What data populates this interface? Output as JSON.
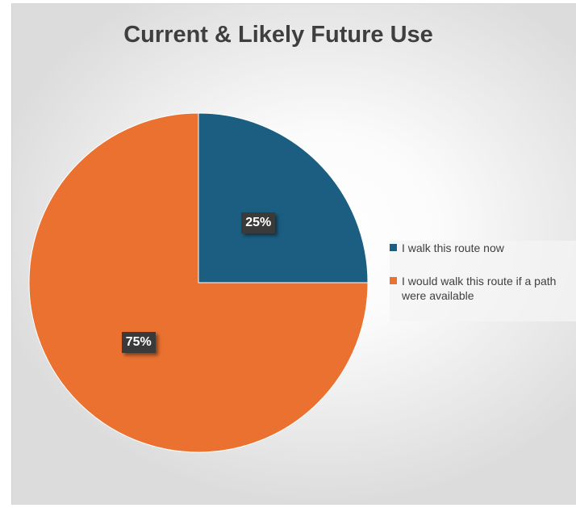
{
  "chart_data": {
    "type": "pie",
    "title": "Current & Likely Future Use",
    "categories": [
      "I walk this route now",
      "I would walk this route if a path were available"
    ],
    "values": [
      25,
      75
    ],
    "data_labels": [
      "25%",
      "75%"
    ],
    "colors": [
      "#1b5e82",
      "#ea7130"
    ],
    "legend_position": "right",
    "start_angle_deg": 0,
    "direction": "clockwise"
  }
}
